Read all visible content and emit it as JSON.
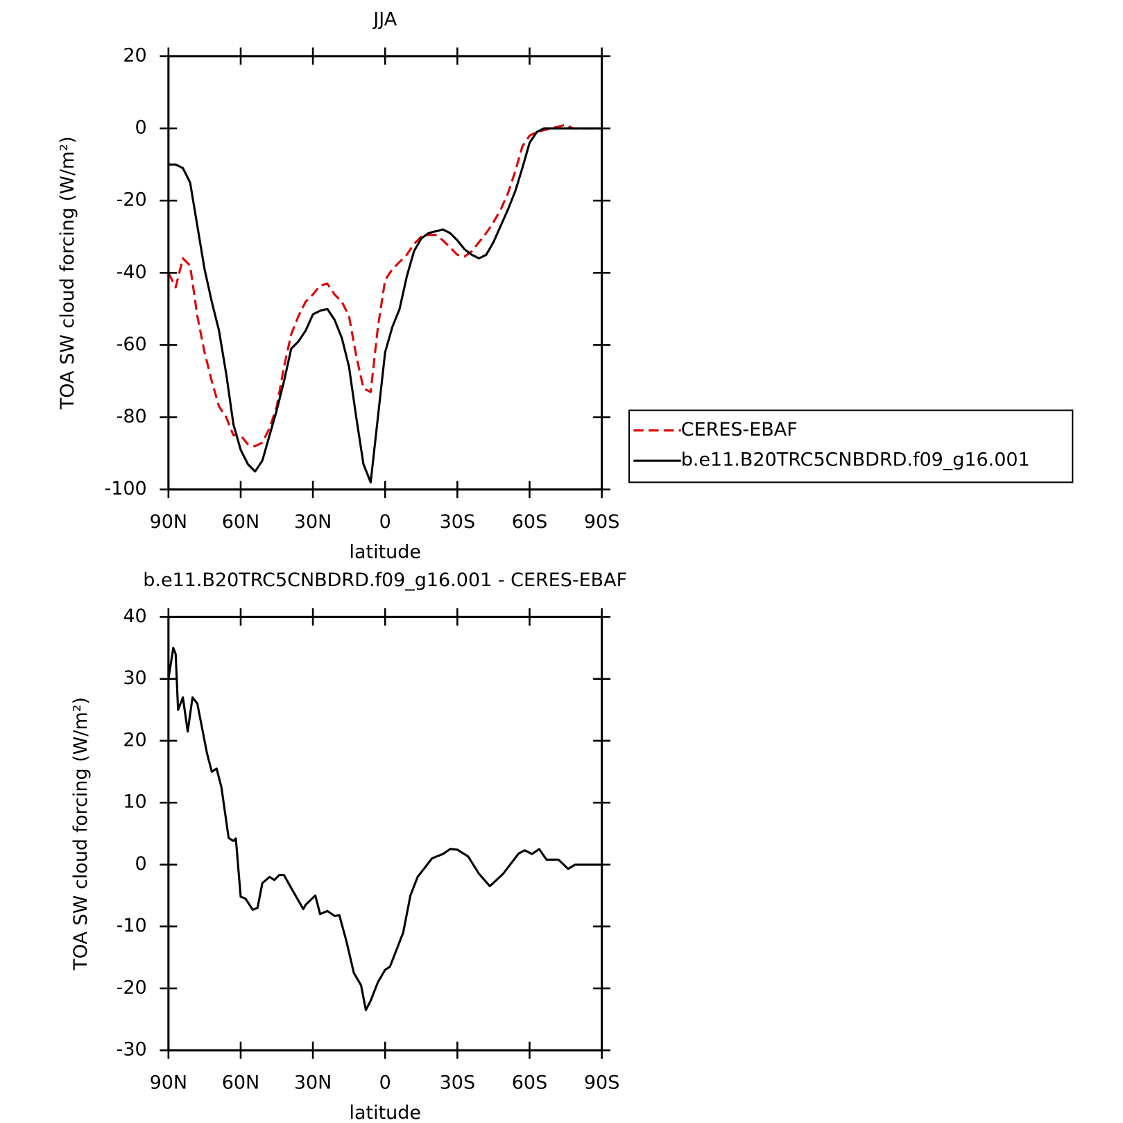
{
  "chart_data": [
    {
      "type": "line",
      "title": "JJA",
      "xlabel": "latitude",
      "ylabel": "TOA SW cloud forcing (W/m²)",
      "xlim": [
        90,
        -90
      ],
      "ylim": [
        -100,
        20
      ],
      "xticks": [
        {
          "value": 90,
          "label": "90N"
        },
        {
          "value": 60,
          "label": "60N"
        },
        {
          "value": 30,
          "label": "30N"
        },
        0,
        {
          "value": -30,
          "label": "30S"
        },
        {
          "value": -60,
          "label": "60S"
        },
        {
          "value": -90,
          "label": "90S"
        }
      ],
      "yticks": [
        -100,
        -80,
        -60,
        -40,
        -20,
        0,
        20
      ],
      "legend": "right",
      "x": [
        90,
        87,
        84,
        81,
        78,
        75,
        72,
        69,
        66,
        63,
        60,
        57,
        54,
        51,
        48,
        45,
        42,
        39,
        36,
        33,
        30,
        27,
        24,
        21,
        18,
        15,
        12,
        9,
        6,
        3,
        0,
        -3,
        -6,
        -9,
        -12,
        -15,
        -18,
        -21,
        -24,
        -27,
        -30,
        -33,
        -36,
        -39,
        -42,
        -45,
        -48,
        -51,
        -54,
        -57,
        -60,
        -63,
        -66,
        -69,
        -72,
        -75,
        -78,
        -81,
        -84,
        -87,
        -90
      ],
      "series": [
        {
          "name": "CERES-EBAF",
          "color": "#e00000",
          "dashed": true,
          "values": [
            -40,
            -44,
            -36,
            -38,
            -52,
            -62,
            -70,
            -77,
            -80,
            -85,
            -85,
            -87.5,
            -88,
            -87,
            -83,
            -77,
            -66,
            -57,
            -52,
            -48,
            -46,
            -43.5,
            -43,
            -46,
            -48,
            -52,
            -63,
            -72,
            -73,
            -55,
            -42,
            -39,
            -37,
            -35,
            -32,
            -30,
            -29.5,
            -29.5,
            -31,
            -33,
            -35,
            -35.5,
            -34,
            -31.5,
            -29,
            -26,
            -22.5,
            -18,
            -12,
            -5,
            -2,
            -1,
            -0.5,
            0,
            0.5,
            1,
            0,
            0,
            0,
            0,
            0
          ]
        },
        {
          "name": "b.e11.B20TRC5CNBDRD.f09_g16.001",
          "color": "#000000",
          "dashed": false,
          "values": [
            -10,
            -10,
            -11,
            -15,
            -27,
            -39,
            -48,
            -56,
            -68,
            -82,
            -89,
            -93,
            -95,
            -92,
            -85,
            -78,
            -70,
            -61,
            -59,
            -56,
            -51.5,
            -50.5,
            -50,
            -53,
            -58,
            -66,
            -80,
            -93,
            -98,
            -80,
            -62,
            -55,
            -50,
            -41,
            -34,
            -30.5,
            -29,
            -28.5,
            -28,
            -29,
            -31,
            -33.5,
            -35,
            -36,
            -35,
            -31.5,
            -27,
            -22.5,
            -17.5,
            -11,
            -4,
            -1,
            0,
            0,
            0,
            0,
            0,
            0,
            0,
            0,
            0
          ]
        }
      ]
    },
    {
      "type": "line",
      "title": "b.e11.B20TRC5CNBDRD.f09_g16.001 - CERES-EBAF",
      "xlabel": "latitude",
      "ylabel": "TOA SW cloud forcing (W/m²)",
      "xlim": [
        90,
        -90
      ],
      "ylim": [
        -30,
        40
      ],
      "xticks": [
        {
          "value": 90,
          "label": "90N"
        },
        {
          "value": 60,
          "label": "60N"
        },
        {
          "value": 30,
          "label": "30N"
        },
        0,
        {
          "value": -30,
          "label": "30S"
        },
        {
          "value": -60,
          "label": "60S"
        },
        {
          "value": -90,
          "label": "90S"
        }
      ],
      "yticks": [
        -30,
        -20,
        -10,
        0,
        10,
        20,
        30,
        40
      ],
      "x": [
        90,
        88,
        87,
        86,
        84,
        82,
        80,
        78,
        74,
        72,
        70,
        68,
        65,
        63,
        62,
        60,
        58,
        55,
        53,
        51,
        48,
        46,
        44,
        42,
        39,
        34,
        33,
        29,
        27,
        24,
        21,
        19,
        16,
        13,
        10,
        8,
        6,
        3,
        0,
        -2,
        -4,
        -7.5,
        -10.5,
        -13.5,
        -19.5,
        -24,
        -27,
        -30,
        -34.5,
        -39,
        -43.5,
        -49,
        -55.5,
        -58,
        -61,
        -64,
        -67,
        -72,
        -76,
        -79,
        -90
      ],
      "series": [
        {
          "color": "#000000",
          "dashed": false,
          "values": [
            30,
            35,
            34,
            25,
            27,
            21.5,
            27,
            26,
            18,
            15,
            15.5,
            12.5,
            4.3,
            3.8,
            4.2,
            -5.2,
            -5.5,
            -7.3,
            -7,
            -3,
            -2,
            -2.5,
            -1.7,
            -1.7,
            -3.8,
            -7.2,
            -6.5,
            -5,
            -8,
            -7.5,
            -8.3,
            -8.2,
            -12.5,
            -17.5,
            -19.5,
            -23.5,
            -22,
            -19,
            -17,
            -16.5,
            -14.5,
            -11,
            -5,
            -2,
            1,
            1.7,
            2.5,
            2.4,
            1.3,
            -1.5,
            -3.5,
            -1.5,
            1.8,
            2.3,
            1.7,
            2.5,
            0.8,
            0.8,
            -0.7,
            0,
            0
          ]
        }
      ]
    }
  ]
}
